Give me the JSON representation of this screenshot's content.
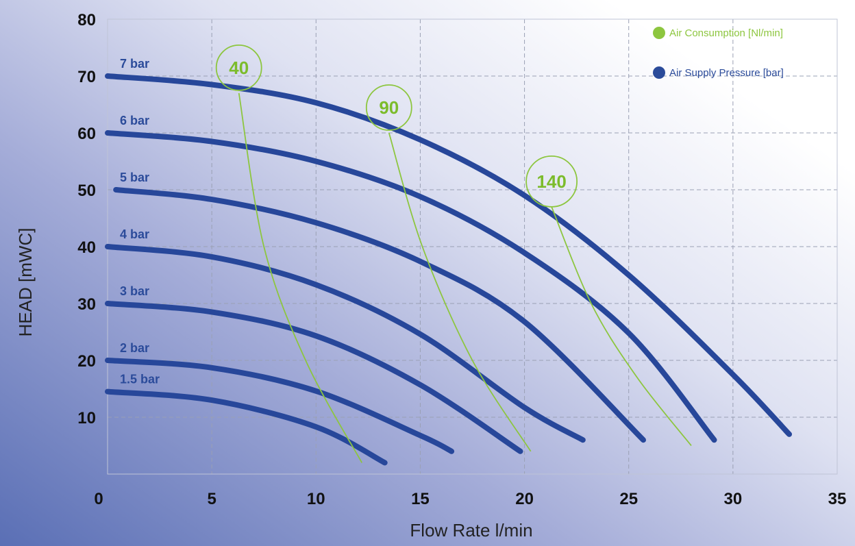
{
  "chart_data": {
    "type": "line",
    "xlabel": "Flow Rate l/min",
    "ylabel": "HEAD [mWC]",
    "xlim": [
      0,
      35
    ],
    "ylim": [
      0,
      80
    ],
    "x_ticks": [
      "0",
      "5",
      "10",
      "15",
      "20",
      "25",
      "30",
      "35"
    ],
    "y_ticks": [
      "10",
      "20",
      "30",
      "40",
      "50",
      "60",
      "70",
      "80"
    ],
    "grid": true,
    "legend_position": "top-right",
    "legend": [
      {
        "label": "Air Consumption [Nl/min]",
        "color": "#8dc63f"
      },
      {
        "label": "Air Supply Pressure [bar]",
        "color": "#2b4b9a"
      }
    ],
    "pressure_series": [
      {
        "name": "7 bar",
        "x": [
          0,
          5,
          10,
          15,
          20,
          25,
          30,
          32.7
        ],
        "y": [
          70,
          68.5,
          65.3,
          58.8,
          49,
          35,
          17.5,
          7
        ]
      },
      {
        "name": "6 bar",
        "x": [
          0,
          5,
          10,
          15,
          20,
          25,
          29.1
        ],
        "y": [
          60,
          58.5,
          55,
          48.8,
          38.9,
          24.8,
          6
        ]
      },
      {
        "name": "5 bar",
        "x": [
          0.4,
          5,
          10,
          15,
          20,
          25.7
        ],
        "y": [
          50,
          48.3,
          44.2,
          37.4,
          26.8,
          6
        ]
      },
      {
        "name": "4 bar",
        "x": [
          0,
          5,
          10,
          15,
          20,
          22.8
        ],
        "y": [
          40,
          38.2,
          33.3,
          24.6,
          11.7,
          6
        ]
      },
      {
        "name": "3 bar",
        "x": [
          0,
          5,
          10,
          15,
          19.8
        ],
        "y": [
          30,
          28.5,
          24.3,
          15.7,
          4
        ]
      },
      {
        "name": "2 bar",
        "x": [
          0,
          5,
          10,
          15,
          16.5
        ],
        "y": [
          20,
          18.7,
          14.6,
          6.8,
          4
        ]
      },
      {
        "name": "1.5 bar",
        "x": [
          0,
          5,
          10,
          13.3
        ],
        "y": [
          14.5,
          13,
          8.3,
          2
        ]
      }
    ],
    "air_series": [
      {
        "name": "40",
        "x": [
          6.3,
          7.5,
          9.5,
          12.2
        ],
        "y": [
          67,
          40,
          20,
          2
        ]
      },
      {
        "name": "90",
        "x": [
          13.5,
          15.1,
          17.5,
          20.3
        ],
        "y": [
          60,
          40,
          20,
          4
        ]
      },
      {
        "name": "140",
        "x": [
          21.3,
          23.2,
          25.4,
          28
        ],
        "y": [
          47,
          30,
          17,
          5
        ]
      }
    ]
  }
}
